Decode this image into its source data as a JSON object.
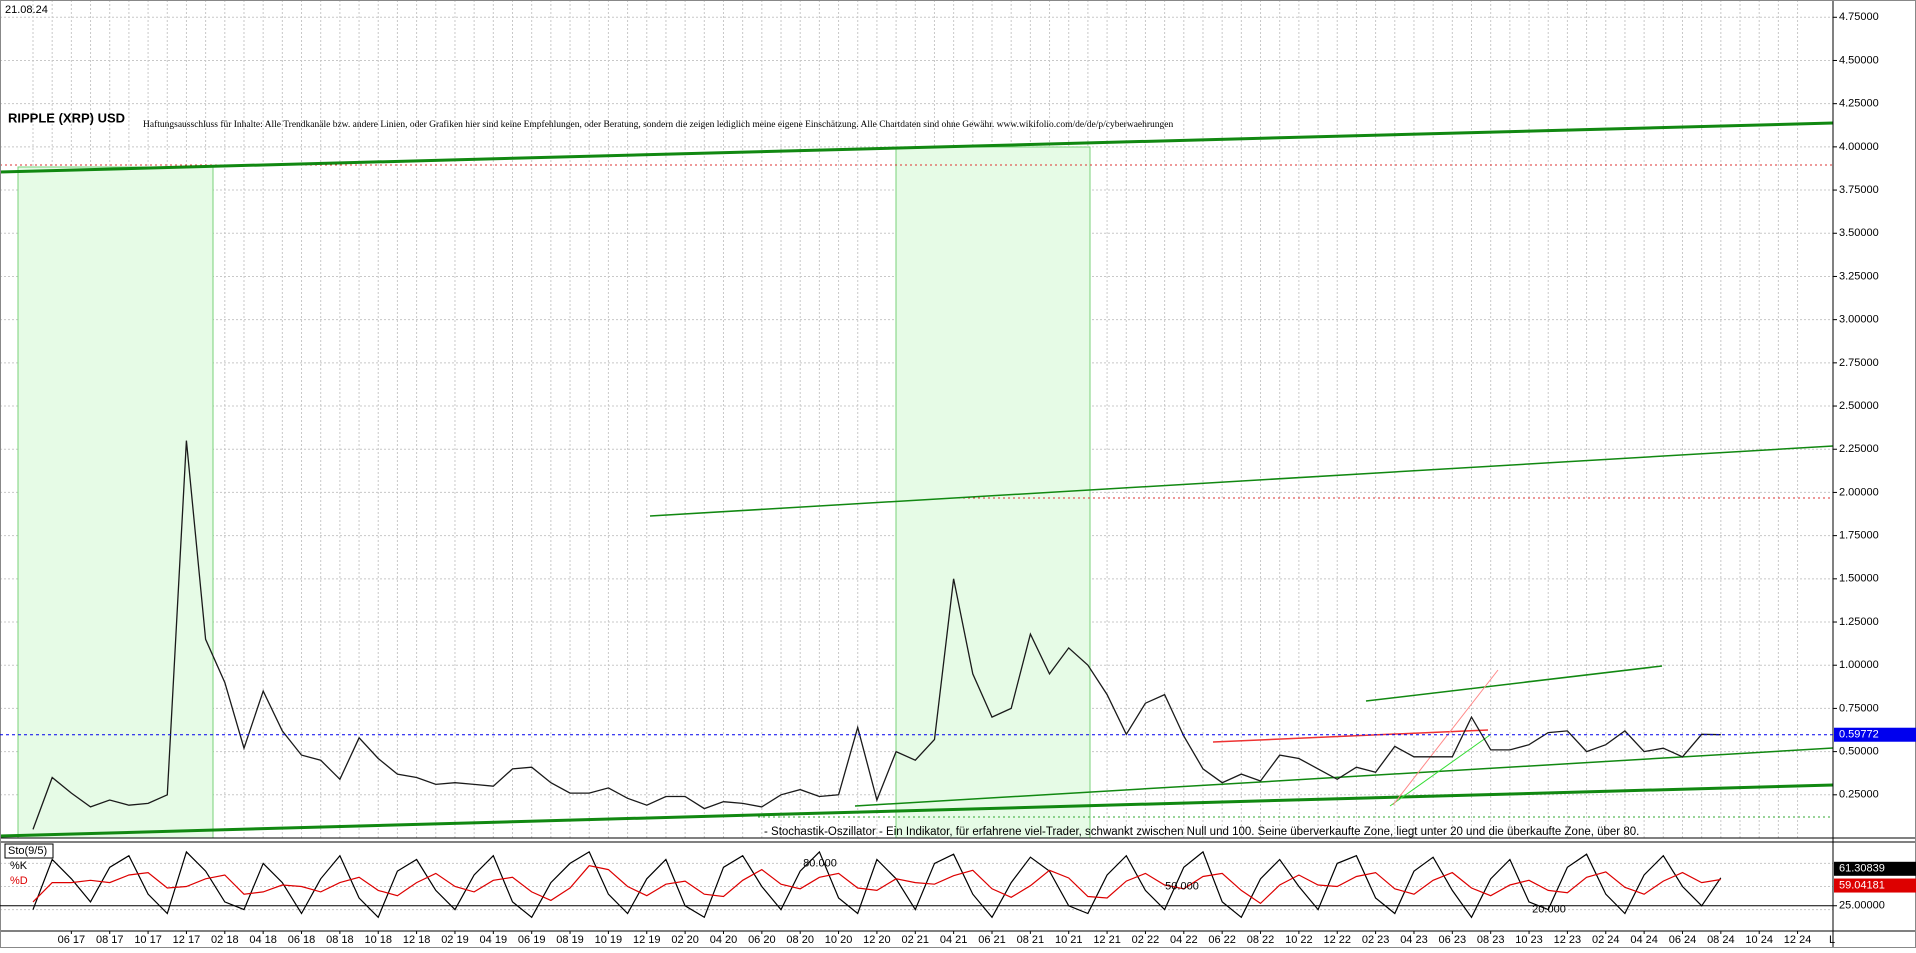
{
  "chart_data": [
    {
      "type": "line",
      "title": "RIPPLE (XRP) USD",
      "subtitle": "Haftungsausschluss für Inhalte: Alle Trendkanäle bzw. andere Linien, oder Grafiken hier sind keine Empfehlungen, oder Beratung, sondern die zeigen lediglich meine eigene Einschätzung. Alle Chartdaten sind ohne Gewähr. www.wikifolio.com/de/de/p/cyberwaehrungen",
      "date": "21.08.24",
      "axis_marker": "L",
      "categories": [
        null,
        null,
        "06 17",
        null,
        "08 17",
        null,
        "10 17",
        null,
        "12 17",
        null,
        "02 18",
        null,
        "04 18",
        null,
        "06 18",
        null,
        "08 18",
        null,
        "10 18",
        null,
        "12 18",
        null,
        "02 19",
        null,
        "04 19",
        null,
        "06 19",
        null,
        "08 19",
        null,
        "10 19",
        null,
        "12 19",
        null,
        "02 20",
        null,
        "04 20",
        null,
        "06 20",
        null,
        "08 20",
        null,
        "10 20",
        null,
        "12 20",
        null,
        "02 21",
        null,
        "04 21",
        null,
        "06 21",
        null,
        "08 21",
        null,
        "10 21",
        null,
        "12 21",
        null,
        "02 22",
        null,
        "04 22",
        null,
        "06 22",
        null,
        "08 22",
        null,
        "10 22",
        null,
        "12 22",
        null,
        "02 23",
        null,
        "04 23",
        null,
        "06 23",
        null,
        "08 23",
        null,
        "10 23",
        null,
        "12 23",
        null,
        "02 24",
        null,
        "04 24",
        null,
        "06 24",
        null,
        "08 24",
        null,
        "10 24",
        null,
        "12 24"
      ],
      "values": [
        0.05,
        0.35,
        0.26,
        0.18,
        0.22,
        0.19,
        0.2,
        0.25,
        2.3,
        1.15,
        0.9,
        0.52,
        0.85,
        0.62,
        0.48,
        0.45,
        0.34,
        0.58,
        0.46,
        0.37,
        0.35,
        0.31,
        0.32,
        0.31,
        0.3,
        0.4,
        0.41,
        0.32,
        0.26,
        0.26,
        0.29,
        0.23,
        0.19,
        0.24,
        0.24,
        0.17,
        0.21,
        0.2,
        0.18,
        0.25,
        0.28,
        0.24,
        0.25,
        0.64,
        0.22,
        0.5,
        0.45,
        0.57,
        1.5,
        0.95,
        0.7,
        0.75,
        1.18,
        0.95,
        1.1,
        1.0,
        0.83,
        0.6,
        0.78,
        0.83,
        0.59,
        0.4,
        0.32,
        0.37,
        0.33,
        0.48,
        0.46,
        0.4,
        0.34,
        0.41,
        0.38,
        0.53,
        0.47,
        0.47,
        0.47,
        0.7,
        0.51,
        0.51,
        0.54,
        0.61,
        0.62,
        0.5,
        0.54,
        0.62,
        0.5,
        0.52,
        0.47,
        0.6,
        0.59772,
        null,
        null,
        null,
        null
      ],
      "color": "#1a1a1a",
      "last_color": "#0000ee",
      "ylim": [
        0,
        4.85
      ],
      "yticks": [
        {
          "value": 0.25,
          "label": "0.25000"
        },
        {
          "value": 0.5,
          "label": "0.50000"
        },
        {
          "value": 0.75,
          "label": "0.75000"
        },
        {
          "value": 1,
          "label": "1.00000"
        },
        {
          "value": 1.25,
          "label": "1.25000"
        },
        {
          "value": 1.5,
          "label": "1.50000"
        },
        {
          "value": 1.75,
          "label": "1.75000"
        },
        {
          "value": 2,
          "label": "2.00000"
        },
        {
          "value": 2.25,
          "label": "2.25000"
        },
        {
          "value": 2.5,
          "label": "2.50000"
        },
        {
          "value": 2.75,
          "label": "2.75000"
        },
        {
          "value": 3,
          "label": "3.00000"
        },
        {
          "value": 3.25,
          "label": "3.25000"
        },
        {
          "value": 3.5,
          "label": "3.50000"
        },
        {
          "value": 3.75,
          "label": "3.75000"
        },
        {
          "value": 4,
          "label": "4.00000"
        },
        {
          "value": 4.25,
          "label": "4.25000"
        },
        {
          "value": 4.5,
          "label": "4.50000"
        },
        {
          "value": 4.75,
          "label": "4.75000"
        }
      ],
      "grid": true
    },
    {
      "type": "line",
      "title": "Sto(9/5)",
      "description": "- Stochastik-Oszillator - Ein Indikator, für erfahrene viel-Trader, schwankt zwischen Null und 100. Seine überverkaufte Zone, liegt unter 20 und die überkaufte Zone, über 80.",
      "series": [
        {
          "name": "%K",
          "color": "#000000",
          "values": [
            20,
            85,
            60,
            30,
            75,
            90,
            40,
            15,
            95,
            70,
            30,
            20,
            80,
            55,
            15,
            60,
            90,
            35,
            10,
            70,
            85,
            45,
            20,
            65,
            90,
            30,
            10,
            55,
            80,
            95,
            40,
            15,
            60,
            85,
            25,
            10,
            75,
            90,
            50,
            20,
            70,
            95,
            35,
            15,
            85,
            60,
            20,
            80,
            92,
            40,
            10,
            55,
            88,
            70,
            25,
            15,
            65,
            90,
            45,
            20,
            75,
            95,
            30,
            10,
            60,
            85,
            50,
            20,
            80,
            90,
            35,
            15,
            70,
            88,
            45,
            10,
            60,
            85,
            30,
            20,
            75,
            92,
            40,
            15,
            65,
            90,
            50,
            25,
            61.30839
          ]
        },
        {
          "name": "%D",
          "color": "#dd0000",
          "values": [
            30,
            55,
            55,
            58,
            55,
            65,
            68,
            48,
            50,
            60,
            65,
            40,
            43,
            52,
            50,
            43,
            55,
            62,
            45,
            38,
            55,
            67,
            50,
            43,
            58,
            62,
            43,
            32,
            48,
            77,
            72,
            50,
            38,
            53,
            57,
            40,
            37,
            58,
            72,
            53,
            47,
            62,
            67,
            48,
            45,
            60,
            55,
            53,
            64,
            71,
            47,
            36,
            51,
            71,
            61,
            37,
            35,
            57,
            67,
            52,
            47,
            63,
            67,
            45,
            28,
            52,
            65,
            52,
            50,
            63,
            68,
            47,
            40,
            58,
            68,
            48,
            38,
            52,
            58,
            45,
            42,
            62,
            69,
            49,
            40,
            57,
            68,
            55,
            59.04181
          ]
        }
      ],
      "levels": [
        {
          "value": 80,
          "label": "80.000"
        },
        {
          "value": 50,
          "label": "50.000"
        },
        {
          "value": 20,
          "label": "20.000"
        }
      ],
      "ylim": [
        0,
        100
      ],
      "yticks": [
        {
          "value": 25,
          "label": "25.00000"
        }
      ]
    }
  ]
}
